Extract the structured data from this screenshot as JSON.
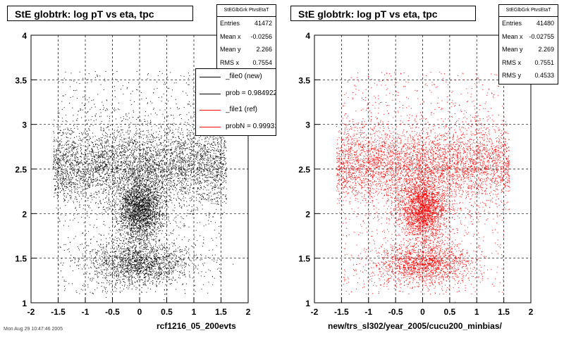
{
  "chart_data": [
    {
      "type": "scatter",
      "title": "StE globtrk: log pT vs eta, tpc",
      "xlabel": "rcf1216_05_200evts",
      "ylabel": "",
      "xlim": [
        -2,
        2
      ],
      "ylim": [
        1,
        4
      ],
      "x_ticks": [
        "-2",
        "-1.5",
        "-1",
        "-0.5",
        "0",
        "0.5",
        "1",
        "1.5",
        "2"
      ],
      "y_ticks": [
        "1",
        "1.5",
        "2",
        "2.5",
        "3",
        "3.5",
        "4"
      ],
      "grid": true,
      "color": "#000000",
      "series": [
        {
          "name": "_file0 (new)",
          "point_count": 41472,
          "clusters": [
            {
              "x_range": [
                -1.6,
                1.6
              ],
              "y_range": [
                2.2,
                2.9
              ],
              "density": "high"
            },
            {
              "x_range": [
                -0.3,
                0.3
              ],
              "y_range": [
                1.8,
                2.3
              ],
              "density": "very high"
            },
            {
              "x_range": [
                -1.0,
                1.0
              ],
              "y_range": [
                1.2,
                1.7
              ],
              "density": "medium"
            }
          ]
        }
      ],
      "stats": {
        "header": "StEGlbGrk PtvsEtaT",
        "entries": "41472",
        "mean_x": "-0.0256",
        "mean_y": "2.266",
        "rms_x": "0.7554"
      },
      "legend": {
        "placement": "top-right",
        "entries": [
          "_file0 (new)",
          "prob = 0.984922",
          "_file1 (ref)",
          "probN = 0.999317"
        ]
      }
    },
    {
      "type": "scatter",
      "title": "StE globtrk: log pT vs eta, tpc",
      "xlabel": "new/trs_sl302/year_2005/cucu200_minbias/",
      "ylabel": "",
      "xlim": [
        -2,
        2
      ],
      "ylim": [
        1,
        4
      ],
      "x_ticks": [
        "-2",
        "-1.5",
        "-1",
        "-0.5",
        "0",
        "0.5",
        "1",
        "1.5",
        "2"
      ],
      "y_ticks": [
        "1",
        "1.5",
        "2",
        "2.5",
        "3",
        "3.5",
        "4"
      ],
      "grid": true,
      "color": "#ff0000",
      "series": [
        {
          "name": "_file1 (ref)",
          "point_count": 41480,
          "clusters": [
            {
              "x_range": [
                -1.6,
                1.6
              ],
              "y_range": [
                2.2,
                2.9
              ],
              "density": "high"
            },
            {
              "x_range": [
                -0.3,
                0.3
              ],
              "y_range": [
                1.8,
                2.3
              ],
              "density": "very high"
            },
            {
              "x_range": [
                -1.0,
                1.0
              ],
              "y_range": [
                1.2,
                1.7
              ],
              "density": "medium"
            }
          ]
        }
      ],
      "stats": {
        "header": "StEGlbGrk PtvsEtaT",
        "entries": "41480",
        "mean_x": "-0.02755",
        "mean_y": "2.269",
        "rms_x": "0.7551",
        "rms_y": "0.4533"
      }
    }
  ],
  "labels": {
    "entries": "Entries",
    "mean_x": "Mean x",
    "mean_y": "Mean y",
    "rms_x": "RMS x",
    "rms_y": "RMS y"
  },
  "datestamp": "Mon Aug 29 10:47:46 2005"
}
